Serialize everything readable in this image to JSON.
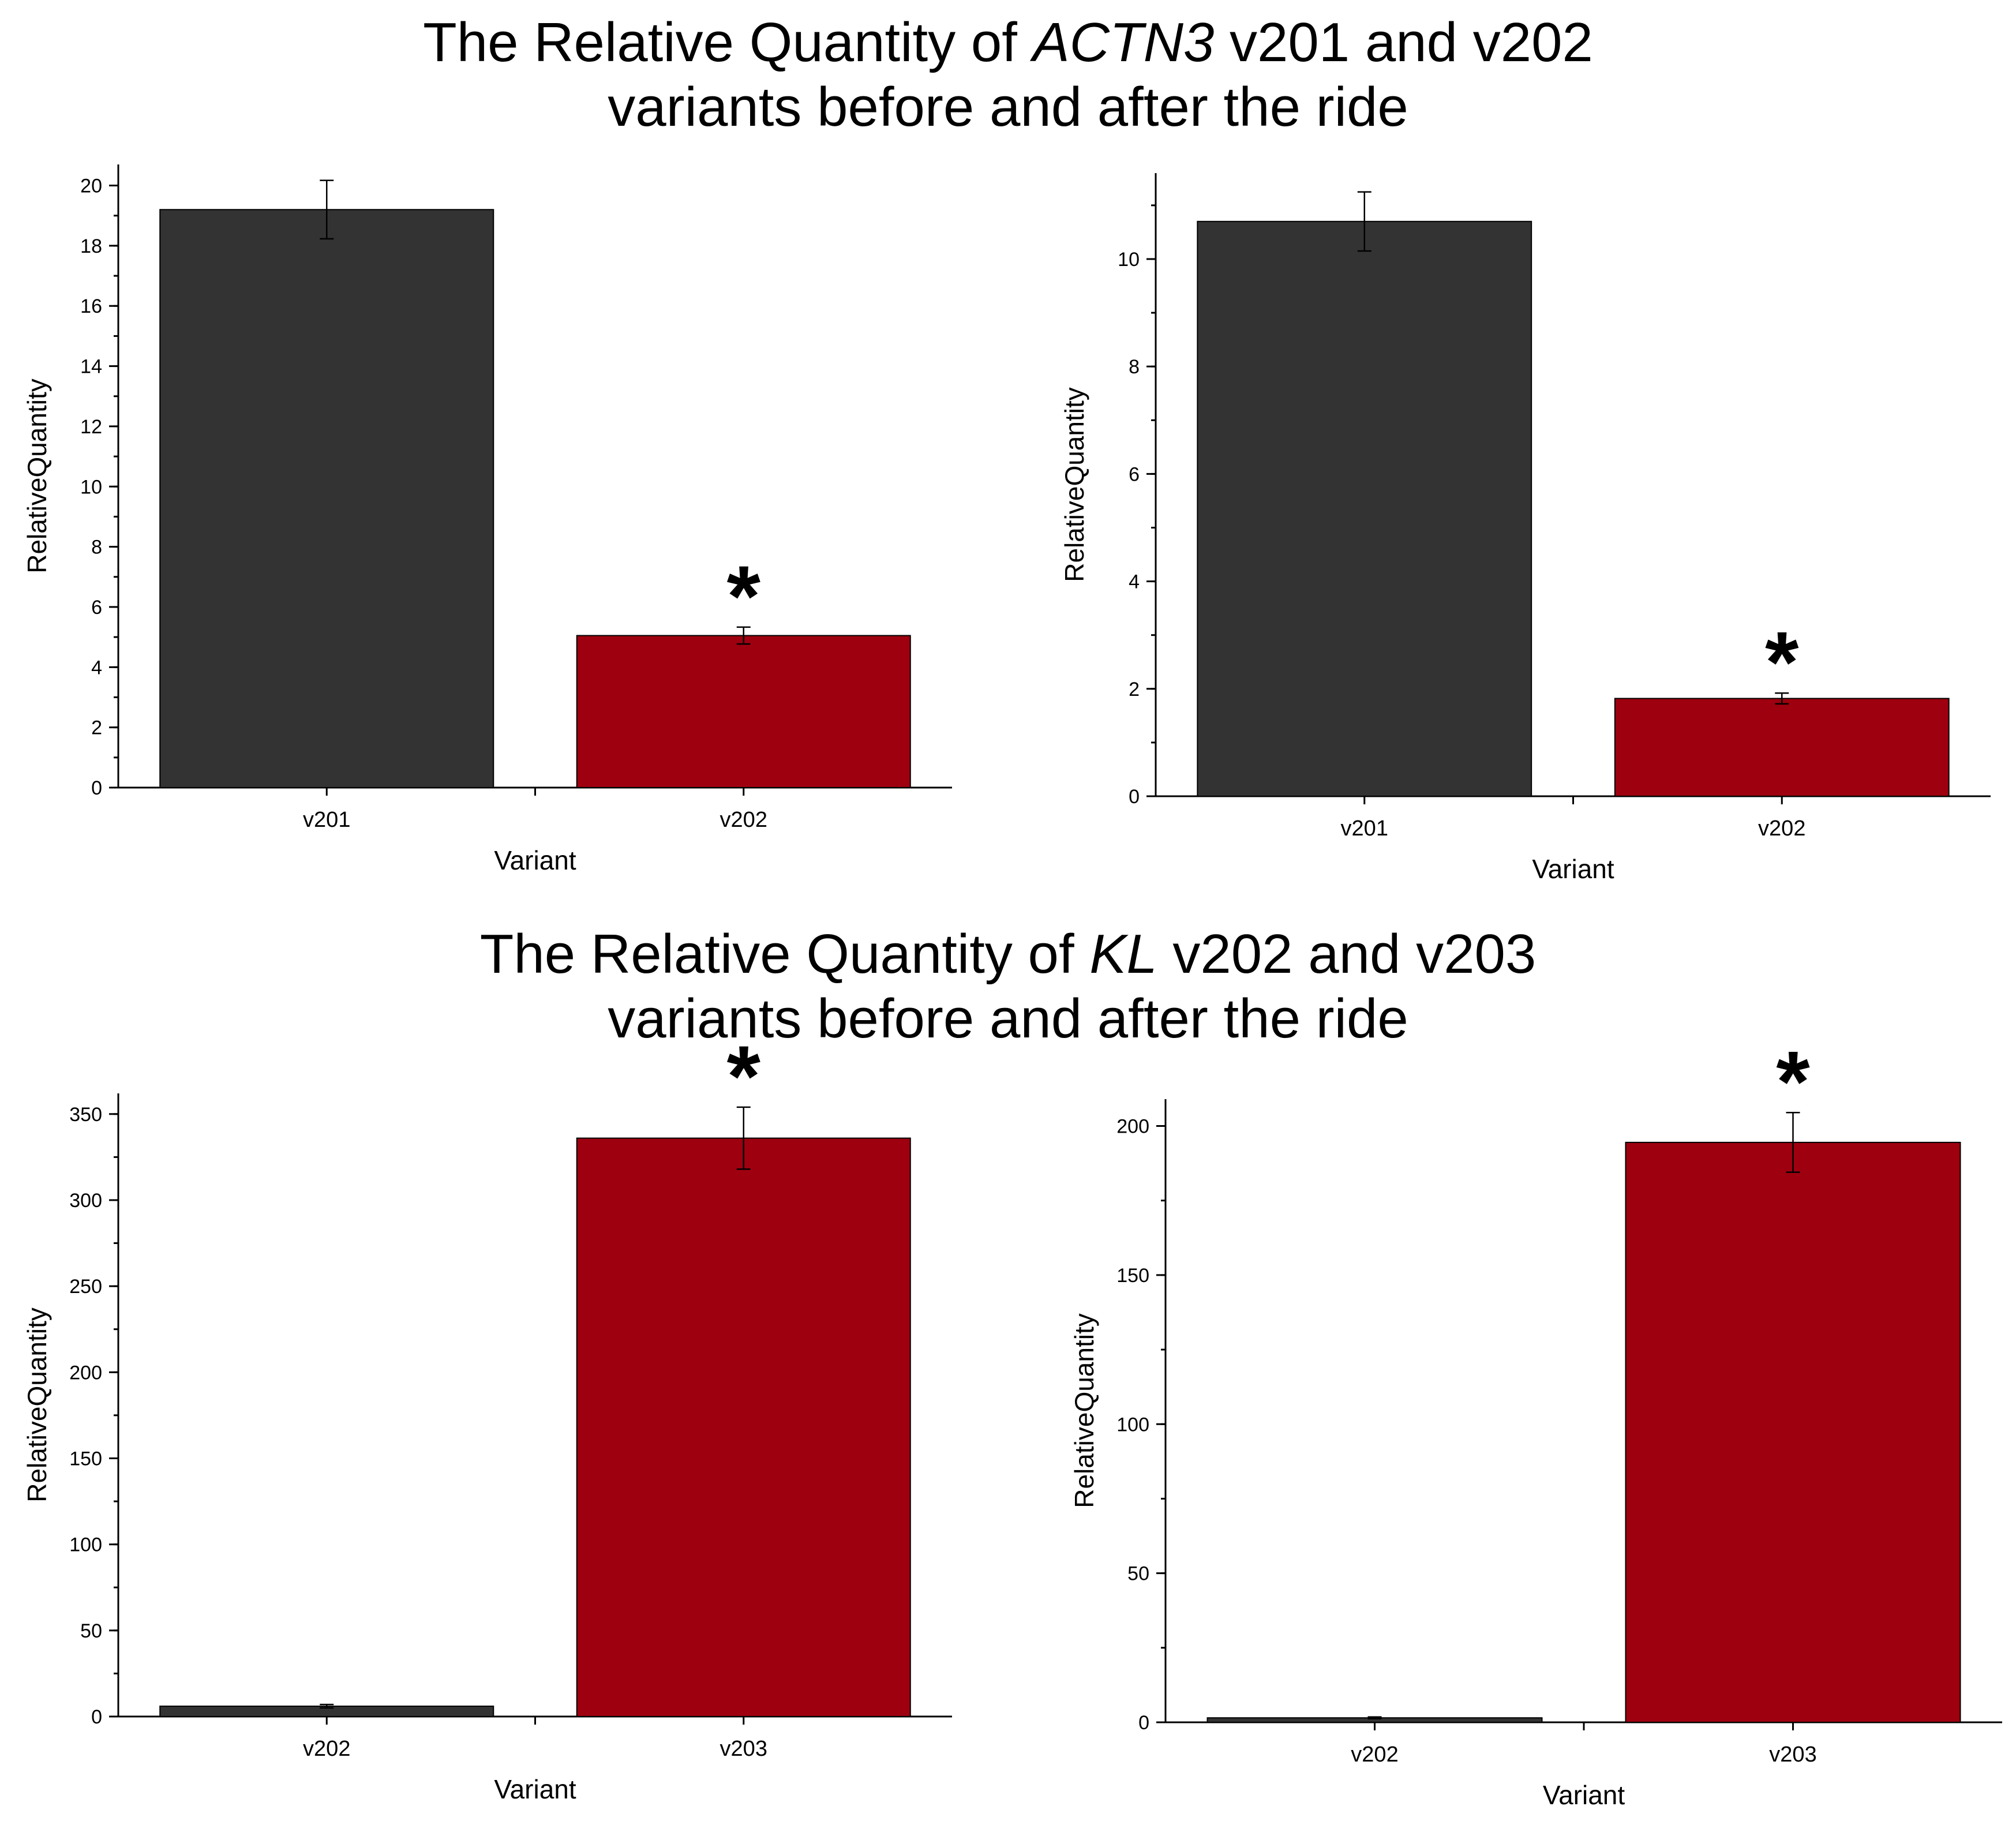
{
  "headings": {
    "actn3": {
      "prefix": "The Relative Quantity of ",
      "gene": "ACTN3",
      "suffix": " v201 and v202",
      "line2": "variants before and after the ride"
    },
    "kl": {
      "prefix": "The Relative Quantity of ",
      "gene": "KL",
      "suffix": " v202 and v203",
      "line2": "variants before and after the ride"
    }
  },
  "colors": {
    "dark_bar": "#333333",
    "red_bar": "#9e0010"
  },
  "chart_data": [
    {
      "id": "actn3-left",
      "type": "bar",
      "title": "",
      "xlabel": "Variant",
      "ylabel": "RelativeQuantity",
      "categories": [
        "v201",
        "v202"
      ],
      "values": [
        19.2,
        5.05
      ],
      "errors": [
        0.97,
        0.28
      ],
      "bar_colors": [
        "#333333",
        "#9e0010"
      ],
      "significance": [
        "",
        "*"
      ],
      "ylim": [
        0,
        20.7
      ],
      "yticks": [
        0,
        2,
        4,
        6,
        8,
        10,
        12,
        14,
        16,
        18,
        20
      ],
      "minor_step": 1,
      "ytick_labels": [
        "0",
        "2",
        "4",
        "6",
        "8",
        "10",
        "12",
        "14",
        "16",
        "18",
        "20"
      ]
    },
    {
      "id": "actn3-right",
      "type": "bar",
      "title": "",
      "xlabel": "Variant",
      "ylabel": "RelativeQuantity",
      "categories": [
        "v201",
        "v202"
      ],
      "values": [
        10.7,
        1.82
      ],
      "errors": [
        0.55,
        0.1
      ],
      "bar_colors": [
        "#333333",
        "#9e0010"
      ],
      "significance": [
        "",
        "*"
      ],
      "ylim": [
        0,
        11.6
      ],
      "yticks": [
        0,
        2,
        4,
        6,
        8,
        10
      ],
      "minor_step": 1,
      "ytick_labels": [
        "0",
        "2",
        "4",
        "6",
        "8",
        "10"
      ]
    },
    {
      "id": "kl-left",
      "type": "bar",
      "title": "",
      "xlabel": "Variant",
      "ylabel": "RelativeQuantity",
      "categories": [
        "v202",
        "v203"
      ],
      "values": [
        6,
        336
      ],
      "errors": [
        1,
        18
      ],
      "bar_colors": [
        "#333333",
        "#9e0010"
      ],
      "significance": [
        "",
        "*"
      ],
      "ylim": [
        0,
        362
      ],
      "yticks": [
        0,
        50,
        100,
        150,
        200,
        250,
        300,
        350
      ],
      "minor_step": 25,
      "ytick_labels": [
        "0",
        "50",
        "100",
        "150",
        "200",
        "250",
        "300",
        "350"
      ]
    },
    {
      "id": "kl-right",
      "type": "bar",
      "title": "",
      "xlabel": "Variant",
      "ylabel": "RelativeQuantity",
      "categories": [
        "v202",
        "v203"
      ],
      "values": [
        1.5,
        194.5
      ],
      "errors": [
        0.3,
        10
      ],
      "bar_colors": [
        "#333333",
        "#9e0010"
      ],
      "significance": [
        "",
        "*"
      ],
      "ylim": [
        0,
        209
      ],
      "yticks": [
        0,
        50,
        100,
        150,
        200
      ],
      "minor_step": 25,
      "ytick_labels": [
        "0",
        "50",
        "100",
        "150",
        "200"
      ]
    }
  ]
}
